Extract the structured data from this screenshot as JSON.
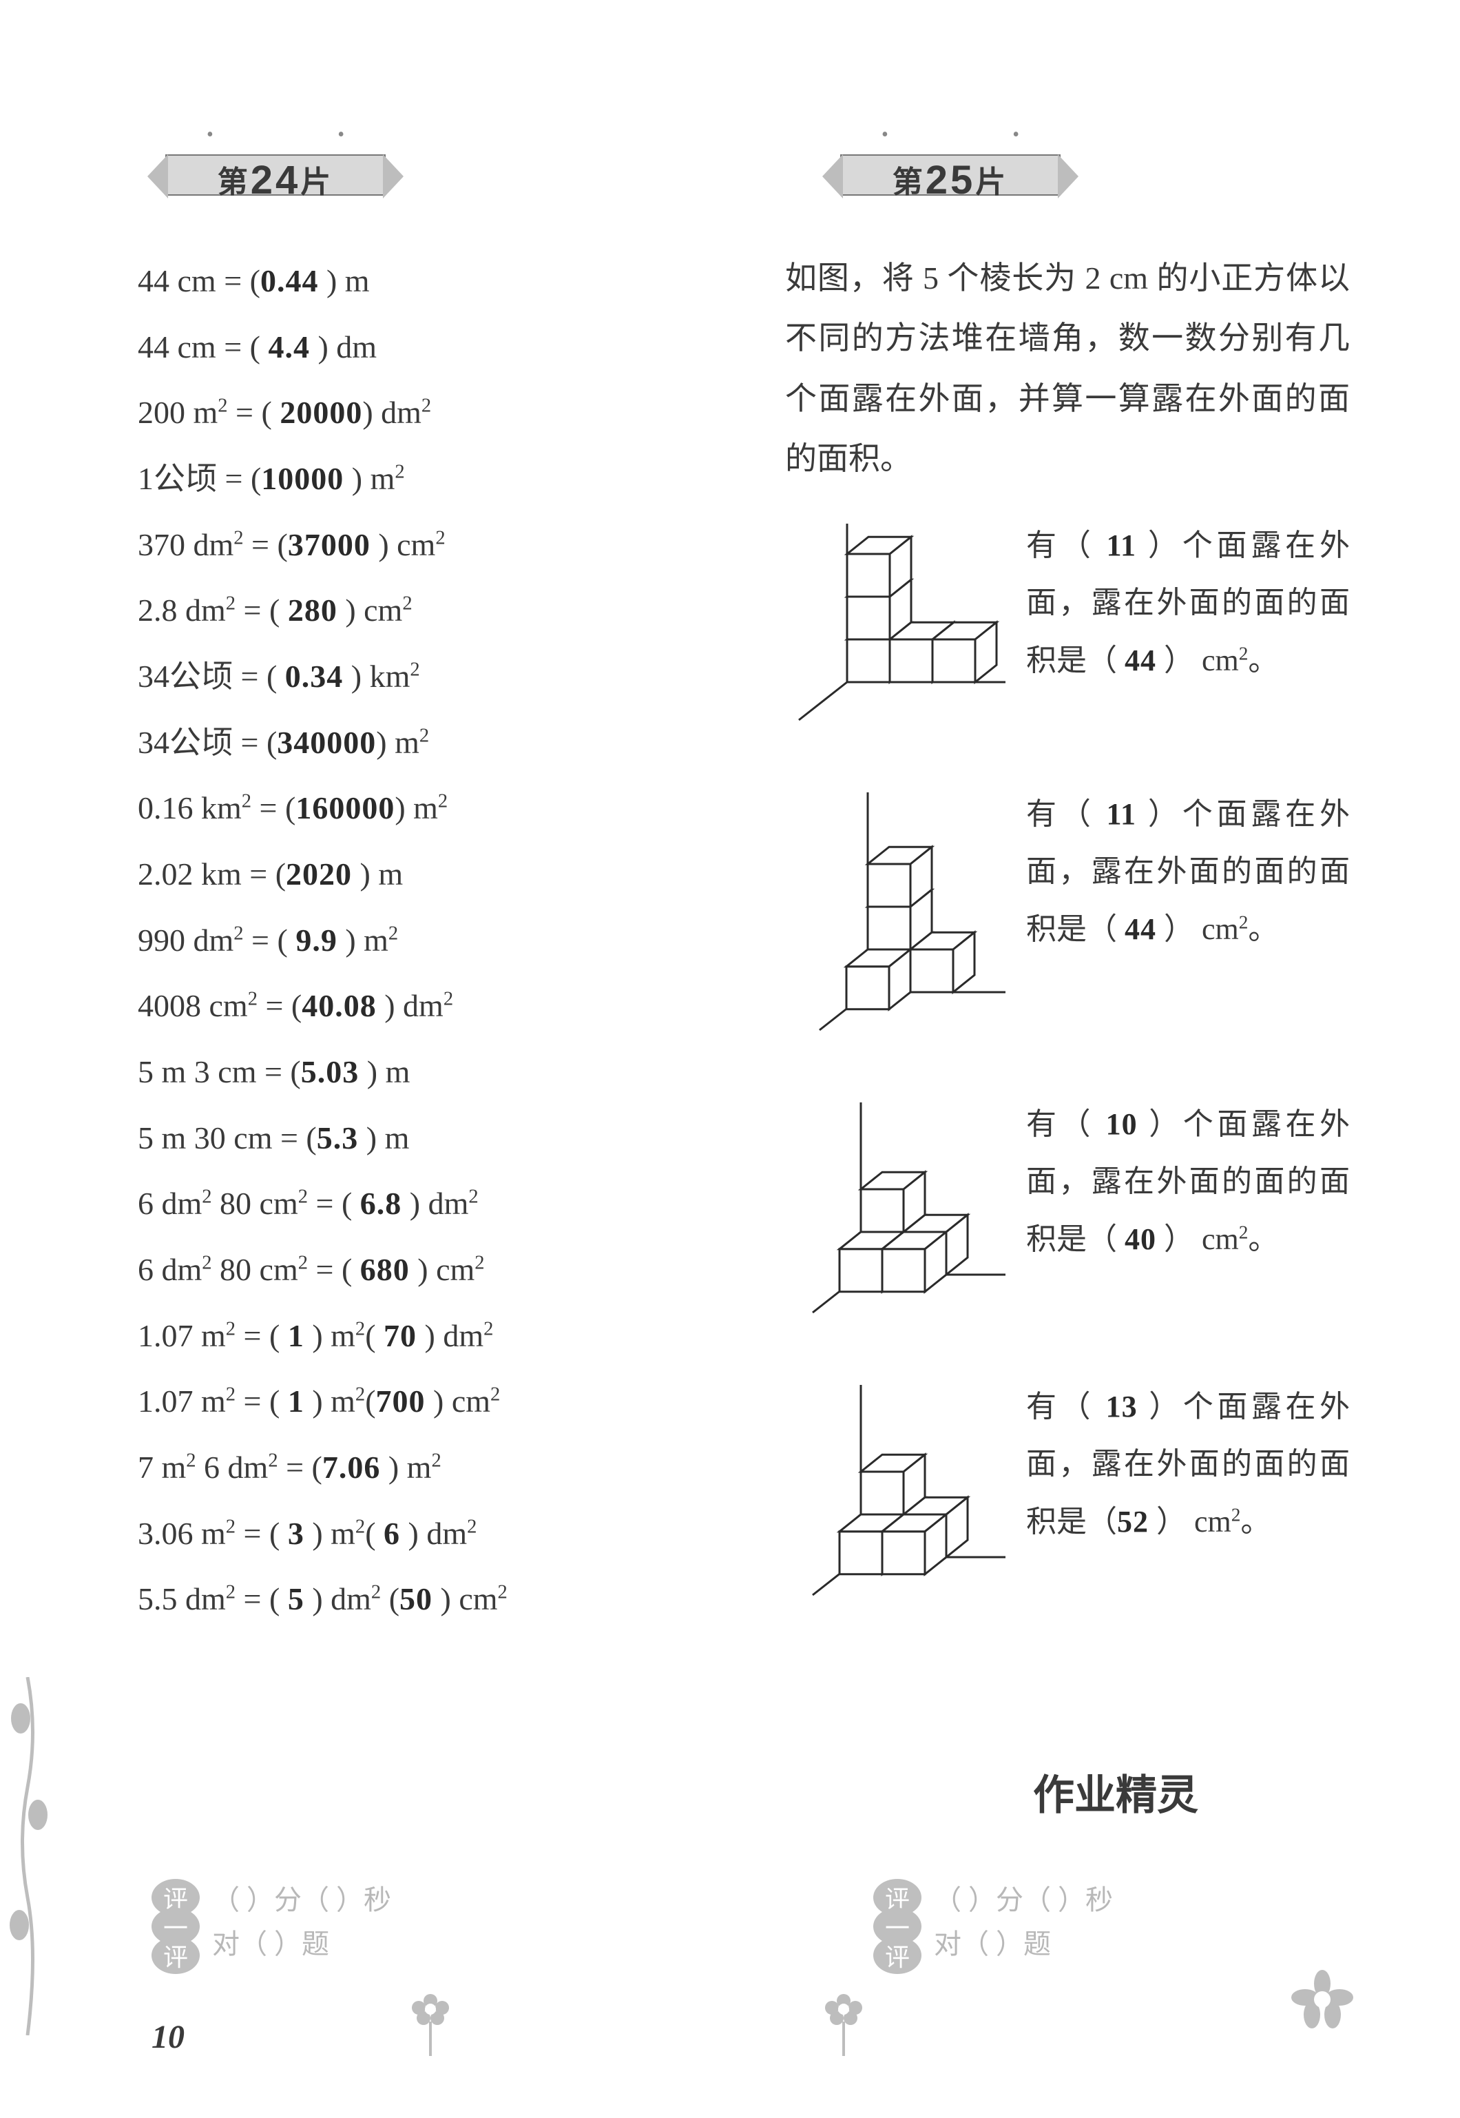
{
  "left": {
    "ribbon": {
      "prefix": "第",
      "num": "24",
      "suffix": "片"
    },
    "lines": [
      {
        "lhs": "44 cm = (",
        "ans": "0.44",
        "rhs": " ) m"
      },
      {
        "lhs": "44 cm = ( ",
        "ans": "4.4",
        "rhs": " ) dm"
      },
      {
        "lhs": "200 m<sup>2</sup> = ( ",
        "ans": "20000",
        "rhs": ") dm<sup>2</sup>"
      },
      {
        "lhs": "1<span class='cjk'>公顷</span> = (",
        "ans": "10000",
        "rhs": " ) m<sup>2</sup>"
      },
      {
        "lhs": "370 dm<sup>2</sup> = (",
        "ans": "37000",
        "rhs": " ) cm<sup>2</sup>"
      },
      {
        "lhs": "2.8 dm<sup>2</sup> = ( ",
        "ans": "280",
        "rhs": " ) cm<sup>2</sup>"
      },
      {
        "lhs": "34<span class='cjk'>公顷</span> = ( ",
        "ans": "0.34",
        "rhs": " ) km<sup>2</sup>"
      },
      {
        "lhs": "34<span class='cjk'>公顷</span> = (",
        "ans": "340000",
        "rhs": ") m<sup>2</sup>"
      },
      {
        "lhs": "0.16 km<sup>2</sup> = (",
        "ans": "160000",
        "rhs": ") m<sup>2</sup>"
      },
      {
        "lhs": "2.02 km = (",
        "ans": "2020",
        "rhs": " ) m"
      },
      {
        "lhs": "990 dm<sup>2</sup> = ( ",
        "ans": "9.9",
        "rhs": " ) m<sup>2</sup>"
      },
      {
        "lhs": "4008 cm<sup>2</sup> = (",
        "ans": "40.08",
        "rhs": " ) dm<sup>2</sup>"
      },
      {
        "lhs": "5 m 3 cm = (",
        "ans": "5.03",
        "rhs": " ) m"
      },
      {
        "lhs": "5 m 30 cm = (",
        "ans": "5.3",
        "rhs": "  ) m"
      },
      {
        "lhs": "6 dm<sup>2</sup> 80 cm<sup>2</sup> = ( ",
        "ans": "6.8",
        "rhs": "  ) dm<sup>2</sup>"
      },
      {
        "lhs": "6 dm<sup>2</sup> 80 cm<sup>2</sup> = ( ",
        "ans": "680",
        "rhs": " ) cm<sup>2</sup>"
      },
      {
        "lhs": "1.07 m<sup>2</sup> = (  ",
        "ans": "1",
        "rhs": "  ) m<sup>2</sup>( ",
        "ans2": "70",
        "rhs2": "  ) dm<sup>2</sup>"
      },
      {
        "lhs": "1.07 m<sup>2</sup> = (  ",
        "ans": "1",
        "rhs": "  ) m<sup>2</sup>(",
        "ans2": "700",
        "rhs2": "  ) cm<sup>2</sup>"
      },
      {
        "lhs": "7 m<sup>2</sup> 6 dm<sup>2</sup> = (",
        "ans": "7.06",
        "rhs": " ) m<sup>2</sup>"
      },
      {
        "lhs": "3.06 m<sup>2</sup> = (  ",
        "ans": "3",
        "rhs": "   ) m<sup>2</sup>(  ",
        "ans2": "6",
        "rhs2": "  ) dm<sup>2</sup>"
      },
      {
        "lhs": "5.5 dm<sup>2</sup> = (  ",
        "ans": "5",
        "rhs": "  ) dm<sup>2</sup> (",
        "ans2": "50",
        "rhs2": "  ) cm<sup>2</sup>"
      }
    ]
  },
  "right": {
    "ribbon": {
      "prefix": "第",
      "num": "25",
      "suffix": "片"
    },
    "intro": "如图，将 5 个棱长为 2 cm 的小正方体以不同的方法堆在墙角，数一数分别有几个面露在外面，并算一算露在外面的面的面积。",
    "figs": [
      {
        "faces": "11",
        "area": "44",
        "text_pre": "有（ ",
        "text_mid1": "  ）个面露在外面，露在外面的面的面积是（ ",
        "text_mid2": " ） cm<sup>2</sup>。"
      },
      {
        "faces": "11",
        "area": "44",
        "text_pre": "有（ ",
        "text_mid1": "  ）个面露在外面，露在外面的面的面积是（ ",
        "text_mid2": "  ） cm<sup>2</sup>。"
      },
      {
        "faces": "10",
        "area": "40",
        "text_pre": "有（ ",
        "text_mid1": "   ）个面露在外面，露在外面的面的面积是（  ",
        "text_mid2": "  ） cm<sup>2</sup>。"
      },
      {
        "faces": "13",
        "area": "52",
        "text_pre": "有（ ",
        "text_mid1": "  ）个面露在外面，露在外面的面的面积是（",
        "text_mid2": "  ） cm<sup>2</sup>。"
      }
    ]
  },
  "watermark": "作业精灵",
  "eval": {
    "badge_top": "评",
    "badge_mid": "一",
    "badge_bot": "评",
    "line1": "（    ）分（    ）秒",
    "line2": "对（    ）题"
  },
  "page_number": "10",
  "colors": {
    "text": "#3a3a3a",
    "faded": "#b8b8b8",
    "stroke": "#2a2a2a"
  }
}
